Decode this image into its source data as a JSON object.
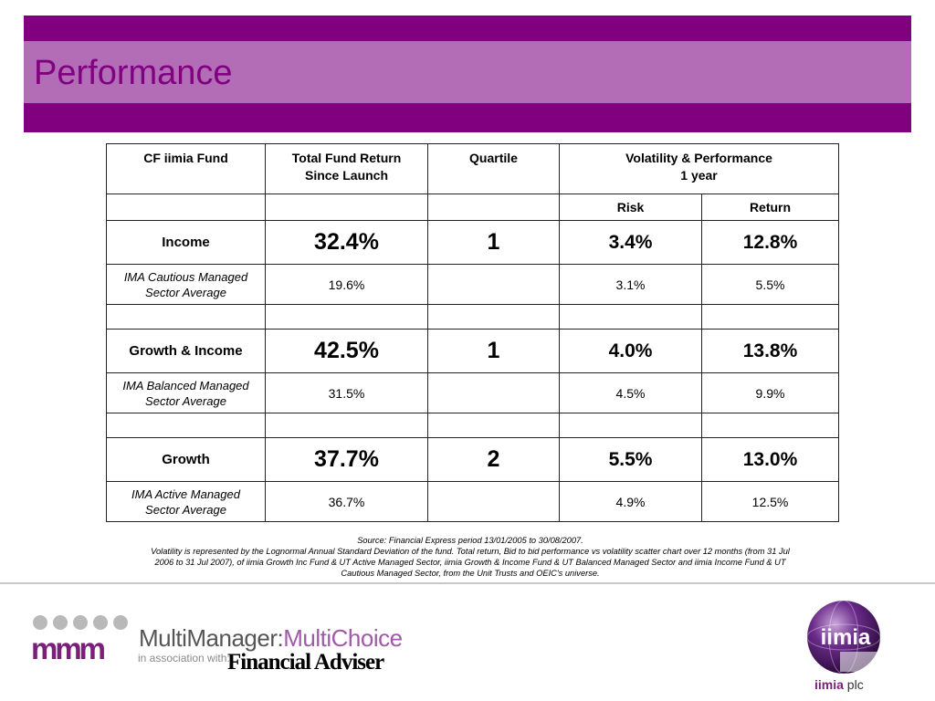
{
  "slide": {
    "title": "Performance"
  },
  "table": {
    "header": {
      "col1": "CF iimia Fund",
      "col2_line1": "Total Fund Return",
      "col2_line2": "Since Launch",
      "col3": "Quartile",
      "col4_line1": "Volatility & Performance",
      "col4_line2": "1 year"
    },
    "subheader": {
      "risk": "Risk",
      "return": "Return"
    },
    "groups": [
      {
        "fund": {
          "name": "Income",
          "total_return": "32.4%",
          "quartile": "1",
          "risk": "3.4%",
          "return": "12.8%"
        },
        "sector": {
          "name_line1": "IMA Cautious Managed",
          "name_line2": "Sector Average",
          "total_return": "19.6%",
          "quartile": "",
          "risk": "3.1%",
          "return": "5.5%"
        }
      },
      {
        "fund": {
          "name": "Growth & Income",
          "total_return": "42.5%",
          "quartile": "1",
          "risk": "4.0%",
          "return": "13.8%"
        },
        "sector": {
          "name_line1": "IMA Balanced Managed",
          "name_line2": "Sector Average",
          "total_return": "31.5%",
          "quartile": "",
          "risk": "4.5%",
          "return": "9.9%"
        }
      },
      {
        "fund": {
          "name": "Growth",
          "total_return": "37.7%",
          "quartile": "2",
          "risk": "5.5%",
          "return": "13.0%"
        },
        "sector": {
          "name_line1": "IMA Active Managed",
          "name_line2": "Sector Average",
          "total_return": "36.7%",
          "quartile": "",
          "risk": "4.9%",
          "return": "12.5%"
        }
      }
    ]
  },
  "notes": {
    "source": "Source: Financial Express period 13/01/2005 to 30/08/2007.",
    "line1": "Volatility is represented by the Lognormal Annual Standard Deviation of the fund. Total return, Bid to bid performance vs volatility scatter chart over 12 months (from 31 Jul",
    "line2": "2006 to 31 Jul 2007), of iimia Growth Inc Fund & UT Active Managed Sector, iimia Growth & Income Fund & UT Balanced Managed Sector and iimia Income Fund & UT",
    "line3": "Cautious Managed Sector, from the Unit Trusts and OEIC's universe."
  },
  "footer": {
    "mm_mark": "mmm",
    "mm_name_part1": "MultiManager:",
    "mm_name_part2": "MultiChoice",
    "association": "in association with:",
    "partner": "Financial Adviser",
    "globe_text": "iimia",
    "company_bold": "iimia",
    "company_suffix": " plc"
  },
  "colors": {
    "brand_purple": "#800080",
    "band_light": "#b36db6",
    "dot_grey": "#b9b9b9"
  }
}
